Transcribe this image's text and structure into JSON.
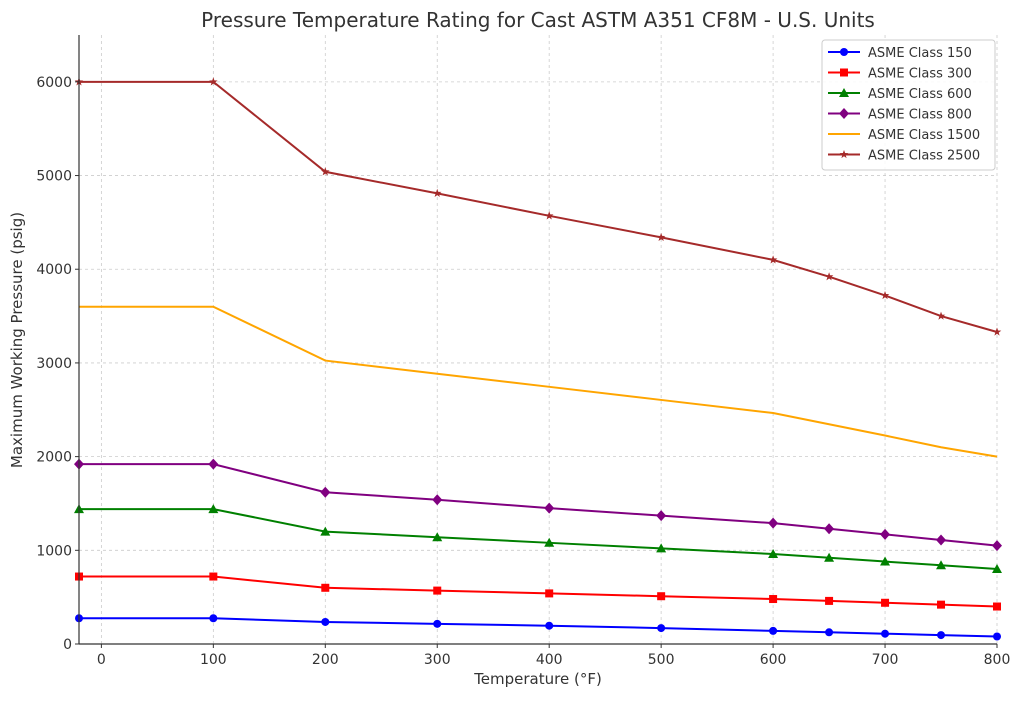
{
  "chart_data": {
    "type": "line",
    "title": "Pressure Temperature Rating for Cast ASTM A351 CF8M - U.S. Units",
    "xlabel": "Temperature (°F)",
    "ylabel": "Maximum Working Pressure (psig)",
    "xlim": [
      -20,
      800
    ],
    "ylim": [
      0,
      6500
    ],
    "xticks": [
      0,
      100,
      200,
      300,
      400,
      500,
      600,
      700,
      800
    ],
    "yticks": [
      0,
      1000,
      2000,
      3000,
      4000,
      5000,
      6000
    ],
    "grid": true,
    "legend_position": "top-right",
    "x": [
      -20,
      100,
      200,
      300,
      400,
      500,
      600,
      650,
      700,
      750,
      800
    ],
    "series": [
      {
        "name": "ASME Class 150",
        "color": "#0000ff",
        "marker": "circle",
        "values": [
          275,
          275,
          235,
          215,
          195,
          170,
          140,
          125,
          110,
          95,
          80
        ]
      },
      {
        "name": "ASME Class 300",
        "color": "#ff0000",
        "marker": "square",
        "values": [
          720,
          720,
          600,
          570,
          540,
          510,
          480,
          460,
          440,
          420,
          400
        ]
      },
      {
        "name": "ASME Class 600",
        "color": "#008000",
        "marker": "triangle",
        "values": [
          1440,
          1440,
          1200,
          1140,
          1080,
          1020,
          960,
          920,
          880,
          840,
          800
        ]
      },
      {
        "name": "ASME Class 800",
        "color": "#800080",
        "marker": "diamond",
        "values": [
          1920,
          1920,
          1620,
          1540,
          1450,
          1370,
          1290,
          1230,
          1170,
          1110,
          1050
        ]
      },
      {
        "name": "ASME Class 1500",
        "color": "#ffa500",
        "marker": "none",
        "values": [
          3600,
          3600,
          3025,
          2885,
          2745,
          2605,
          2465,
          2345,
          2225,
          2100,
          2000
        ]
      },
      {
        "name": "ASME Class 2500",
        "color": "#a52a2a",
        "marker": "star",
        "values": [
          6000,
          6000,
          5040,
          4810,
          4570,
          4340,
          4100,
          3920,
          3720,
          3500,
          3330
        ]
      }
    ]
  }
}
